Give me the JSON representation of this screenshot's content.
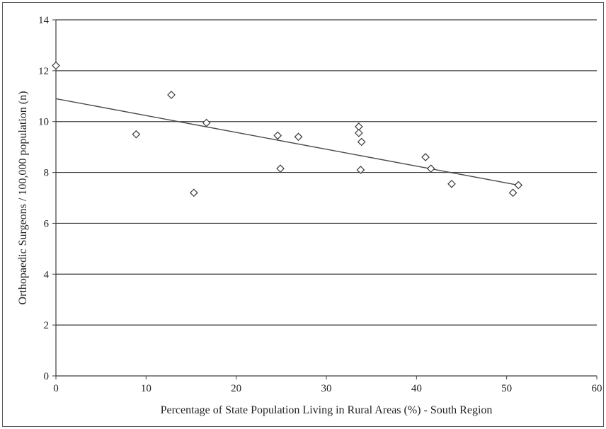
{
  "chart_data": {
    "type": "scatter",
    "title": "",
    "xlabel": "Percentage of State Population Living in Rural Areas (%) - South Region",
    "ylabel": "Orthopaedic Surgeons / 100,000 population (n)",
    "xlim": [
      0,
      60
    ],
    "ylim": [
      0,
      14
    ],
    "xticks": [
      0,
      10,
      20,
      30,
      40,
      50,
      60
    ],
    "yticks": [
      0,
      2,
      4,
      6,
      8,
      10,
      12,
      14
    ],
    "grid": "horizontal",
    "legend": "none",
    "marker": "diamond",
    "series": [
      {
        "x": [
          0,
          8.9,
          12.8,
          15.3,
          16.7,
          24.6,
          24.9,
          26.9,
          33.6,
          33.6,
          33.9,
          33.8,
          41.0,
          41.6,
          43.9,
          50.7,
          51.3
        ],
        "y": [
          12.2,
          9.5,
          11.05,
          7.2,
          9.95,
          9.45,
          8.15,
          9.4,
          9.8,
          9.55,
          9.2,
          8.1,
          8.6,
          8.15,
          7.55,
          7.2,
          7.5
        ]
      }
    ],
    "trendline": {
      "type": "linear",
      "x": [
        0,
        51.3
      ],
      "y": [
        10.9,
        7.5
      ]
    }
  }
}
